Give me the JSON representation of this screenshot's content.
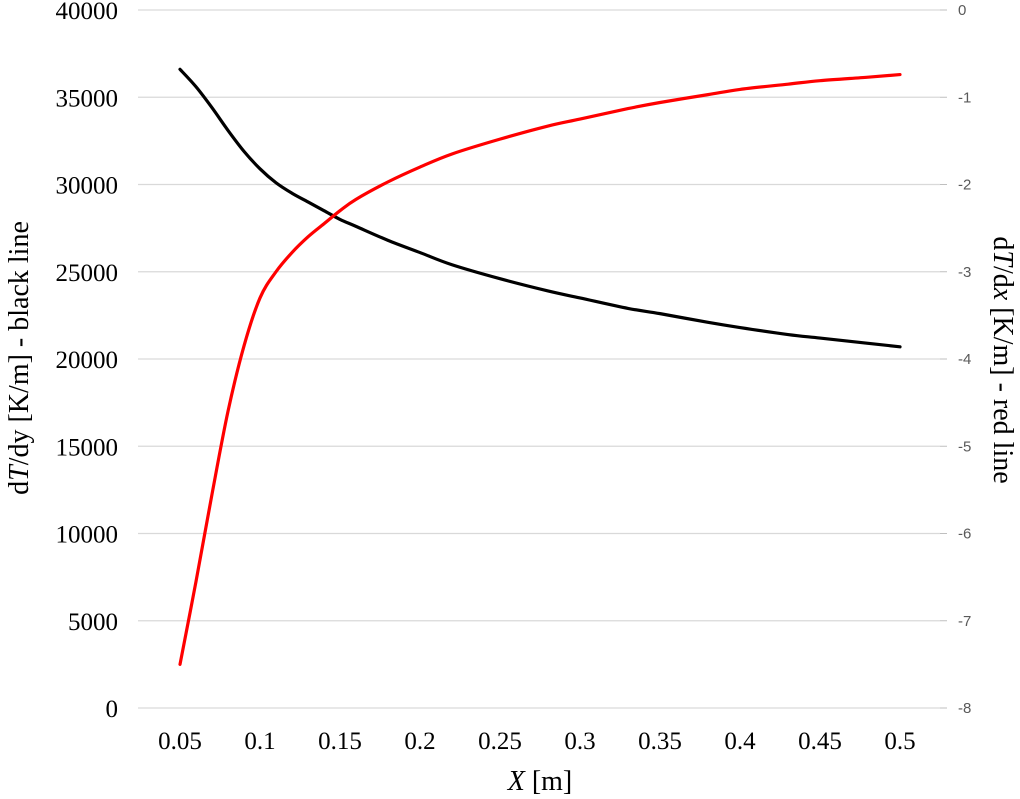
{
  "chart_data": {
    "type": "line",
    "x_label": {
      "italic": "X",
      "rest": " [m]"
    },
    "y_left_label": {
      "pre": "d",
      "italic": "T",
      "rest": "/dy [K/m] - black line"
    },
    "y_right_label": {
      "pre": "d",
      "italic": "T",
      "mid": "/d",
      "italic2": "x",
      "rest": " [K/m] - red line"
    },
    "x_ticks": [
      "0.05",
      "0.1",
      "0.15",
      "0.2",
      "0.25",
      "0.3",
      "0.35",
      "0.4",
      "0.45",
      "0.5"
    ],
    "y_left_ticks": [
      "0",
      "5000",
      "10000",
      "15000",
      "20000",
      "25000",
      "30000",
      "35000",
      "40000"
    ],
    "y_right_ticks": [
      "-8",
      "-7",
      "-6",
      "-5",
      "-4",
      "-3",
      "-2",
      "-1",
      "0"
    ],
    "y_left_range": [
      0,
      40000
    ],
    "y_right_range": [
      -8,
      0
    ],
    "grid": true,
    "series": [
      {
        "axis": "left",
        "color": "#000000",
        "x": [
          0.05,
          0.06,
          0.07,
          0.08,
          0.09,
          0.1,
          0.11,
          0.12,
          0.13,
          0.14,
          0.15,
          0.16,
          0.18,
          0.2,
          0.22,
          0.25,
          0.28,
          0.3,
          0.33,
          0.35,
          0.38,
          0.4,
          0.43,
          0.45,
          0.48,
          0.5
        ],
        "y": [
          36600,
          35600,
          34400,
          33100,
          31900,
          30900,
          30100,
          29500,
          29000,
          28500,
          28000,
          27600,
          26800,
          26100,
          25400,
          24600,
          23900,
          23500,
          22900,
          22600,
          22100,
          21800,
          21400,
          21200,
          20900,
          20700
        ]
      },
      {
        "axis": "right",
        "color": "#ff0000",
        "x": [
          0.05,
          0.06,
          0.07,
          0.08,
          0.09,
          0.1,
          0.11,
          0.12,
          0.13,
          0.14,
          0.15,
          0.16,
          0.18,
          0.2,
          0.22,
          0.25,
          0.28,
          0.3,
          0.33,
          0.35,
          0.38,
          0.4,
          0.43,
          0.45,
          0.48,
          0.5
        ],
        "y": [
          -7.5,
          -6.55,
          -5.55,
          -4.6,
          -3.85,
          -3.3,
          -3.0,
          -2.78,
          -2.6,
          -2.45,
          -2.3,
          -2.17,
          -1.97,
          -1.8,
          -1.65,
          -1.48,
          -1.33,
          -1.25,
          -1.13,
          -1.06,
          -0.97,
          -0.91,
          -0.85,
          -0.81,
          -0.77,
          -0.74
        ]
      }
    ]
  }
}
